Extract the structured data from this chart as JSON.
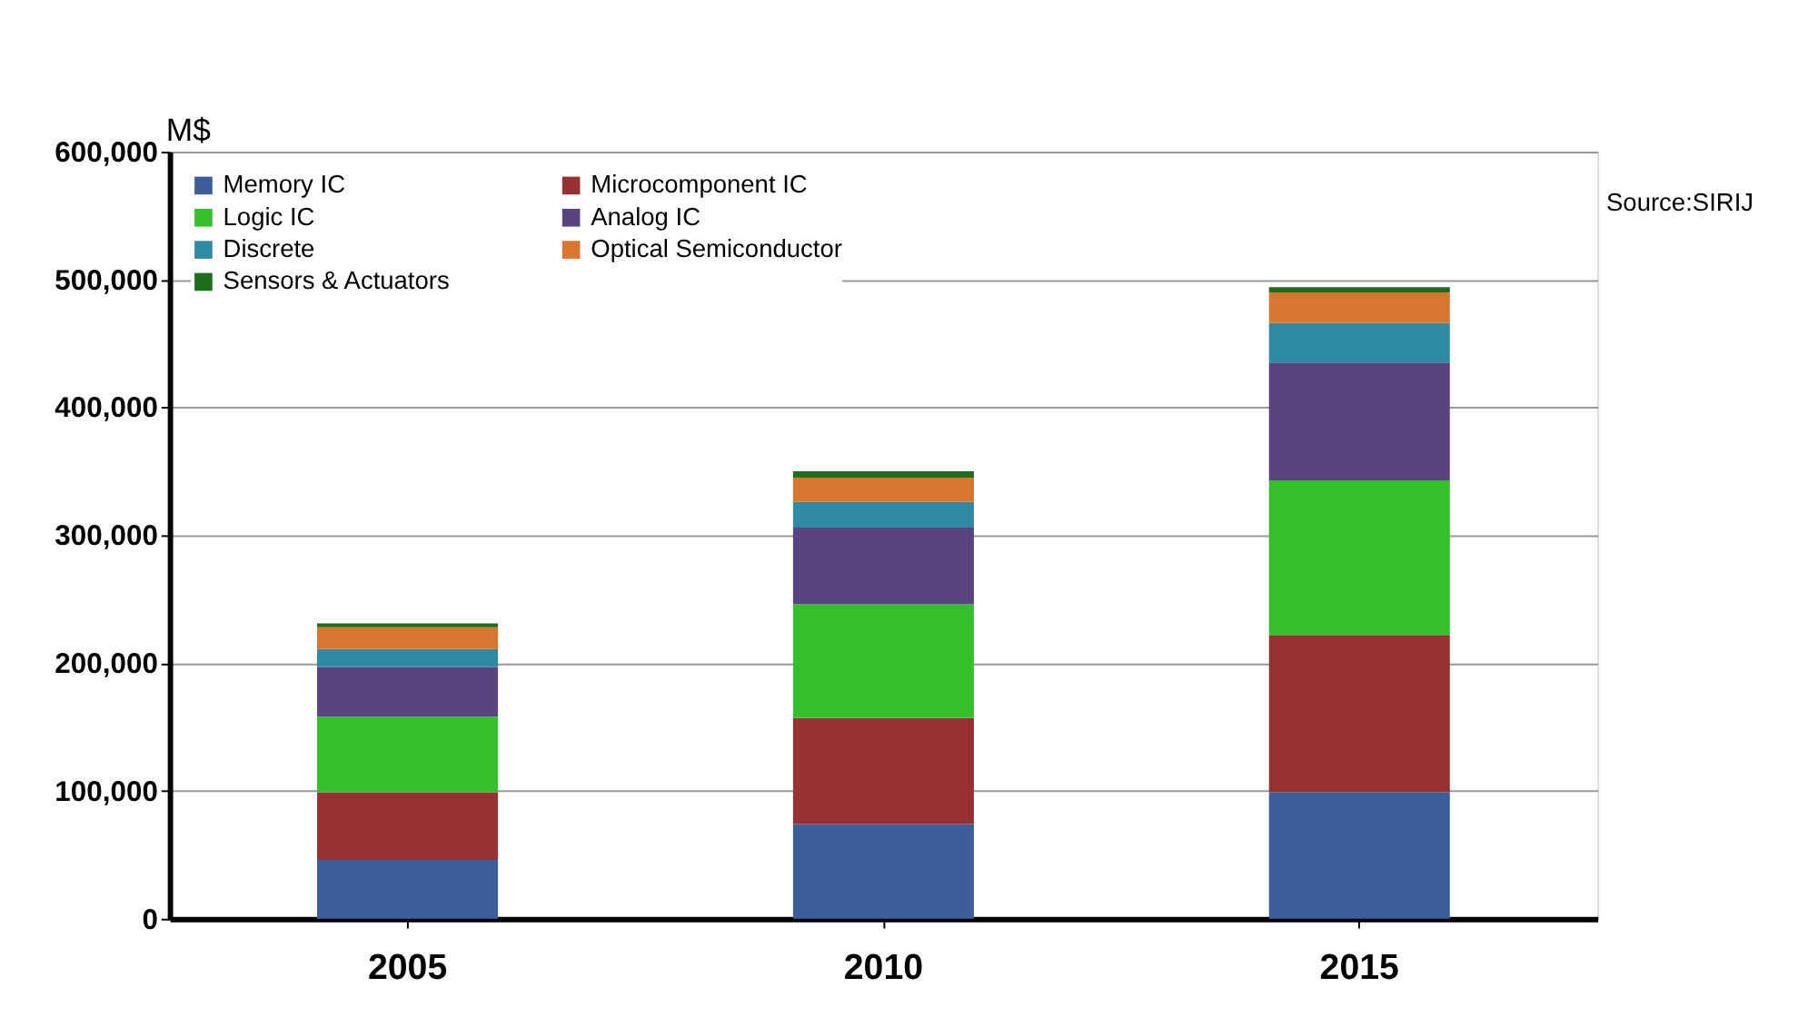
{
  "chart_data": {
    "type": "bar",
    "stacked": true,
    "ylabel": "M$",
    "categories": [
      "2005",
      "2010",
      "2015"
    ],
    "series": [
      {
        "name": "Memory IC",
        "color": "#3a5f9a",
        "values": [
          46000,
          74000,
          99000
        ]
      },
      {
        "name": "Microcomponent IC",
        "color": "#963234",
        "values": [
          53000,
          83000,
          123000
        ]
      },
      {
        "name": "Logic IC",
        "color": "#32c12a",
        "values": [
          59000,
          89000,
          121000
        ]
      },
      {
        "name": "Analog IC",
        "color": "#5b437f",
        "values": [
          39000,
          60000,
          92000
        ]
      },
      {
        "name": "Discrete",
        "color": "#2f8aa3",
        "values": [
          14000,
          20000,
          31000
        ]
      },
      {
        "name": "Optical Semiconductor",
        "color": "#d8752e",
        "values": [
          17000,
          19000,
          24000
        ]
      },
      {
        "name": "Sensors & Actuators",
        "color": "#1d6e1d",
        "values": [
          3000,
          5000,
          4000
        ]
      }
    ],
    "ylim": [
      0,
      600000
    ],
    "yticks": [
      0,
      {
        "value": 100000,
        "label": "100,000"
      },
      {
        "value": 200000,
        "label": "200,000"
      },
      {
        "value": 300000,
        "label": "300,000"
      },
      {
        "value": 400000,
        "label": "400,000"
      },
      {
        "value": 500000,
        "label": "500,000"
      },
      {
        "value": 600000,
        "label": "600,000"
      }
    ],
    "grid": "y",
    "legend": "top left",
    "annotations": [
      "Source:SIRIJ"
    ]
  }
}
